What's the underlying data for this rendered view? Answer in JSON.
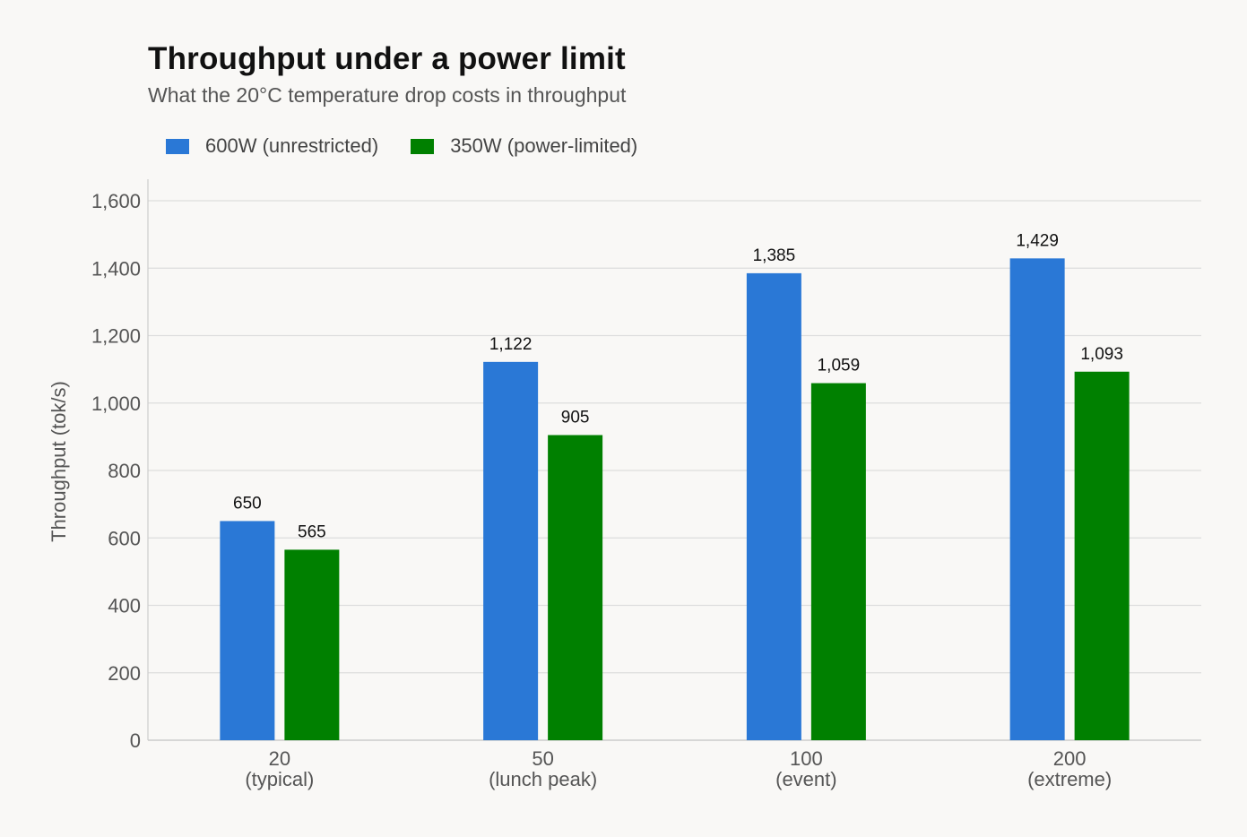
{
  "title": "Throughput under a power limit",
  "subtitle": "What the 20°C temperature drop costs in throughput",
  "legend": {
    "series_0": "600W (unrestricted)",
    "series_1": "350W (power-limited)"
  },
  "colors": {
    "series_0": "#2a78d6",
    "series_1": "#008000",
    "grid": "#dddddd",
    "axis": "#cccccc",
    "tick_text": "#555555",
    "value_label": "#111111"
  },
  "chart_data": {
    "type": "bar",
    "title": "Throughput under a power limit",
    "subtitle": "What the 20°C temperature drop costs in throughput",
    "xlabel": "",
    "ylabel": "Throughput (tok/s)",
    "categories": [
      [
        "20",
        "(typical)"
      ],
      [
        "50",
        "(lunch peak)"
      ],
      [
        "100",
        "(event)"
      ],
      [
        "200",
        "(extreme)"
      ]
    ],
    "series": [
      {
        "name": "600W (unrestricted)",
        "values": [
          650,
          1122,
          1385,
          1429
        ]
      },
      {
        "name": "350W (power-limited)",
        "values": [
          565,
          905,
          1059,
          1093
        ]
      }
    ],
    "ylim": [
      0,
      1600
    ],
    "yticks": [
      0,
      200,
      400,
      600,
      800,
      1000,
      1200,
      1400,
      1600
    ],
    "grid": true,
    "legend_position": "top-left",
    "data_labels": true
  }
}
